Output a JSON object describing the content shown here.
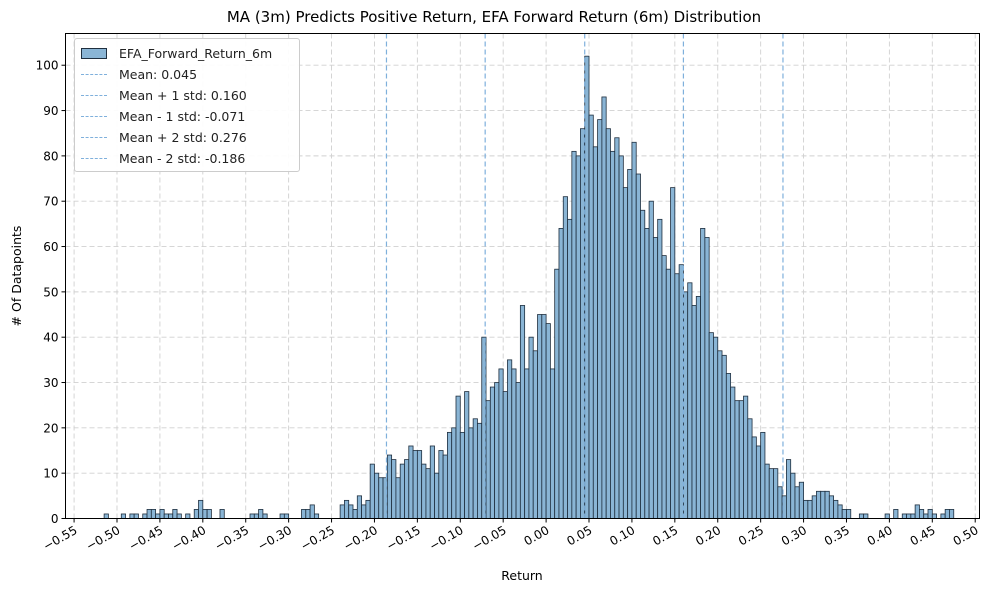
{
  "chart_data": {
    "type": "bar",
    "title": "MA (3m) Predicts Positive Return, EFA Forward Return (6m) Distribution",
    "xlabel": "Return",
    "ylabel": "# Of Datapoints",
    "xlim": [
      -0.56,
      0.505
    ],
    "ylim": [
      0,
      107
    ],
    "grid": true,
    "legend_position": "top-left",
    "bin_width": 0.005,
    "bar_color": "#8ab5d5",
    "bar_edge_color": "#1f2f3f",
    "line_color": "#7fb0dc",
    "x_ticks": [
      -0.55,
      -0.5,
      -0.45,
      -0.4,
      -0.35,
      -0.3,
      -0.25,
      -0.2,
      -0.15,
      -0.1,
      -0.05,
      0.0,
      0.05,
      0.1,
      0.15,
      0.2,
      0.25,
      0.3,
      0.35,
      0.4,
      0.45,
      0.5
    ],
    "x_tick_labels": [
      "−0.55",
      "−0.50",
      "−0.45",
      "−0.40",
      "−0.35",
      "−0.30",
      "−0.25",
      "−0.20",
      "−0.15",
      "−0.10",
      "−0.05",
      "0.00",
      "0.05",
      "0.10",
      "0.15",
      "0.20",
      "0.25",
      "0.30",
      "0.35",
      "0.40",
      "0.45",
      "0.50"
    ],
    "y_ticks": [
      0,
      10,
      20,
      30,
      40,
      50,
      60,
      70,
      80,
      90,
      100
    ],
    "y_tick_labels": [
      "0",
      "10",
      "20",
      "30",
      "40",
      "50",
      "60",
      "70",
      "80",
      "90",
      "100"
    ],
    "series": [
      {
        "name": "EFA_Forward_Return_6m",
        "bins": [
          [
            -0.515,
            1
          ],
          [
            -0.495,
            1
          ],
          [
            -0.485,
            1
          ],
          [
            -0.48,
            1
          ],
          [
            -0.47,
            1
          ],
          [
            -0.465,
            2
          ],
          [
            -0.46,
            2
          ],
          [
            -0.455,
            1
          ],
          [
            -0.45,
            2
          ],
          [
            -0.445,
            1
          ],
          [
            -0.44,
            1
          ],
          [
            -0.435,
            2
          ],
          [
            -0.43,
            1
          ],
          [
            -0.42,
            1
          ],
          [
            -0.41,
            2
          ],
          [
            -0.405,
            4
          ],
          [
            -0.4,
            2
          ],
          [
            -0.395,
            2
          ],
          [
            -0.38,
            2
          ],
          [
            -0.345,
            1
          ],
          [
            -0.34,
            1
          ],
          [
            -0.335,
            2
          ],
          [
            -0.33,
            1
          ],
          [
            -0.31,
            1
          ],
          [
            -0.305,
            1
          ],
          [
            -0.285,
            2
          ],
          [
            -0.28,
            2
          ],
          [
            -0.275,
            3
          ],
          [
            -0.27,
            1
          ],
          [
            -0.24,
            3
          ],
          [
            -0.235,
            4
          ],
          [
            -0.23,
            3
          ],
          [
            -0.225,
            2
          ],
          [
            -0.22,
            5
          ],
          [
            -0.215,
            3
          ],
          [
            -0.21,
            4
          ],
          [
            -0.205,
            12
          ],
          [
            -0.2,
            10
          ],
          [
            -0.195,
            9
          ],
          [
            -0.19,
            9
          ],
          [
            -0.185,
            14
          ],
          [
            -0.18,
            13
          ],
          [
            -0.175,
            9
          ],
          [
            -0.17,
            12
          ],
          [
            -0.165,
            13
          ],
          [
            -0.16,
            16
          ],
          [
            -0.155,
            15
          ],
          [
            -0.15,
            15
          ],
          [
            -0.145,
            12
          ],
          [
            -0.14,
            11
          ],
          [
            -0.135,
            16
          ],
          [
            -0.13,
            10
          ],
          [
            -0.125,
            15
          ],
          [
            -0.12,
            14
          ],
          [
            -0.115,
            19
          ],
          [
            -0.11,
            20
          ],
          [
            -0.105,
            27
          ],
          [
            -0.1,
            19
          ],
          [
            -0.095,
            28
          ],
          [
            -0.09,
            20
          ],
          [
            -0.085,
            22
          ],
          [
            -0.08,
            21
          ],
          [
            -0.075,
            40
          ],
          [
            -0.07,
            26
          ],
          [
            -0.065,
            29
          ],
          [
            -0.06,
            30
          ],
          [
            -0.055,
            33
          ],
          [
            -0.05,
            28
          ],
          [
            -0.045,
            35
          ],
          [
            -0.04,
            33
          ],
          [
            -0.035,
            30
          ],
          [
            -0.03,
            47
          ],
          [
            -0.025,
            33
          ],
          [
            -0.02,
            40
          ],
          [
            -0.015,
            37
          ],
          [
            -0.01,
            45
          ],
          [
            -0.005,
            45
          ],
          [
            0.0,
            43
          ],
          [
            0.005,
            33
          ],
          [
            0.01,
            55
          ],
          [
            0.015,
            64
          ],
          [
            0.02,
            71
          ],
          [
            0.025,
            66
          ],
          [
            0.03,
            81
          ],
          [
            0.035,
            80
          ],
          [
            0.04,
            86
          ],
          [
            0.045,
            102
          ],
          [
            0.05,
            89
          ],
          [
            0.055,
            82
          ],
          [
            0.06,
            88
          ],
          [
            0.065,
            93
          ],
          [
            0.07,
            86
          ],
          [
            0.075,
            81
          ],
          [
            0.08,
            84
          ],
          [
            0.085,
            80
          ],
          [
            0.09,
            73
          ],
          [
            0.095,
            77
          ],
          [
            0.1,
            83
          ],
          [
            0.105,
            76
          ],
          [
            0.11,
            68
          ],
          [
            0.115,
            64
          ],
          [
            0.12,
            70
          ],
          [
            0.125,
            62
          ],
          [
            0.13,
            66
          ],
          [
            0.135,
            58
          ],
          [
            0.14,
            55
          ],
          [
            0.145,
            73
          ],
          [
            0.15,
            54
          ],
          [
            0.155,
            56
          ],
          [
            0.16,
            50
          ],
          [
            0.165,
            52
          ],
          [
            0.17,
            47
          ],
          [
            0.175,
            49
          ],
          [
            0.18,
            64
          ],
          [
            0.185,
            62
          ],
          [
            0.19,
            41
          ],
          [
            0.195,
            40
          ],
          [
            0.2,
            37
          ],
          [
            0.205,
            36
          ],
          [
            0.21,
            32
          ],
          [
            0.215,
            29
          ],
          [
            0.22,
            26
          ],
          [
            0.225,
            26
          ],
          [
            0.23,
            27
          ],
          [
            0.235,
            22
          ],
          [
            0.24,
            18
          ],
          [
            0.245,
            16
          ],
          [
            0.25,
            19
          ],
          [
            0.255,
            12
          ],
          [
            0.26,
            11
          ],
          [
            0.265,
            11
          ],
          [
            0.27,
            7
          ],
          [
            0.275,
            5
          ],
          [
            0.28,
            13
          ],
          [
            0.285,
            10
          ],
          [
            0.29,
            7
          ],
          [
            0.295,
            8
          ],
          [
            0.3,
            4
          ],
          [
            0.305,
            4
          ],
          [
            0.31,
            5
          ],
          [
            0.315,
            6
          ],
          [
            0.32,
            6
          ],
          [
            0.325,
            6
          ],
          [
            0.33,
            5
          ],
          [
            0.335,
            4
          ],
          [
            0.34,
            3
          ],
          [
            0.345,
            2
          ],
          [
            0.35,
            2
          ],
          [
            0.365,
            1
          ],
          [
            0.37,
            1
          ],
          [
            0.395,
            1
          ],
          [
            0.405,
            2
          ],
          [
            0.415,
            1
          ],
          [
            0.42,
            1
          ],
          [
            0.425,
            1
          ],
          [
            0.43,
            3
          ],
          [
            0.435,
            2
          ],
          [
            0.44,
            1
          ],
          [
            0.445,
            2
          ],
          [
            0.45,
            1
          ],
          [
            0.46,
            1
          ],
          [
            0.465,
            2
          ],
          [
            0.47,
            2
          ]
        ]
      }
    ],
    "vlines": [
      {
        "name": "Mean: 0.045",
        "x": 0.045
      },
      {
        "name": "Mean + 1 std: 0.160",
        "x": 0.16
      },
      {
        "name": "Mean - 1 std: -0.071",
        "x": -0.071
      },
      {
        "name": "Mean + 2 std: 0.276",
        "x": 0.276
      },
      {
        "name": "Mean - 2 std: -0.186",
        "x": -0.186
      }
    ]
  }
}
